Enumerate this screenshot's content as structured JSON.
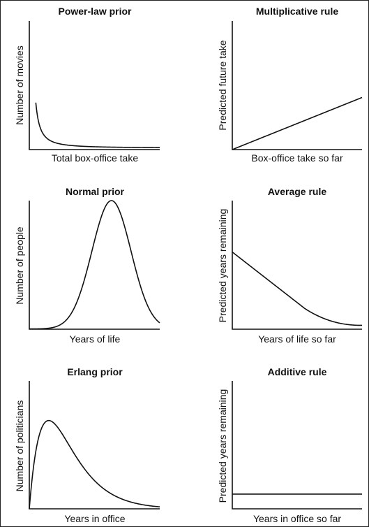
{
  "chart_data": [
    {
      "type": "line",
      "title": "Power-law prior",
      "xlabel": "Total box-office take",
      "ylabel": "Number of movies",
      "function": "power-law",
      "axis_ticks": false,
      "grid": false
    },
    {
      "type": "line",
      "title": "Multiplicative rule",
      "xlabel": "Box-office take so far",
      "ylabel": "Predicted future take",
      "function": "linear",
      "axis_ticks": false,
      "grid": false
    },
    {
      "type": "line",
      "title": "Normal prior",
      "xlabel": "Years of life",
      "ylabel": "Number of people",
      "function": "gaussian",
      "axis_ticks": false,
      "grid": false
    },
    {
      "type": "line",
      "title": "Average rule",
      "xlabel": "Years of life so far",
      "ylabel": "Predicted years remaining",
      "function": "decreasing-to-zero",
      "axis_ticks": false,
      "grid": false
    },
    {
      "type": "line",
      "title": "Erlang prior",
      "xlabel": "Years in office",
      "ylabel": "Number of politicians",
      "function": "erlang",
      "axis_ticks": false,
      "grid": false
    },
    {
      "type": "line",
      "title": "Additive rule",
      "xlabel": "Years in office so far",
      "ylabel": "Predicted years remaining",
      "function": "constant",
      "axis_ticks": false,
      "grid": false
    }
  ]
}
